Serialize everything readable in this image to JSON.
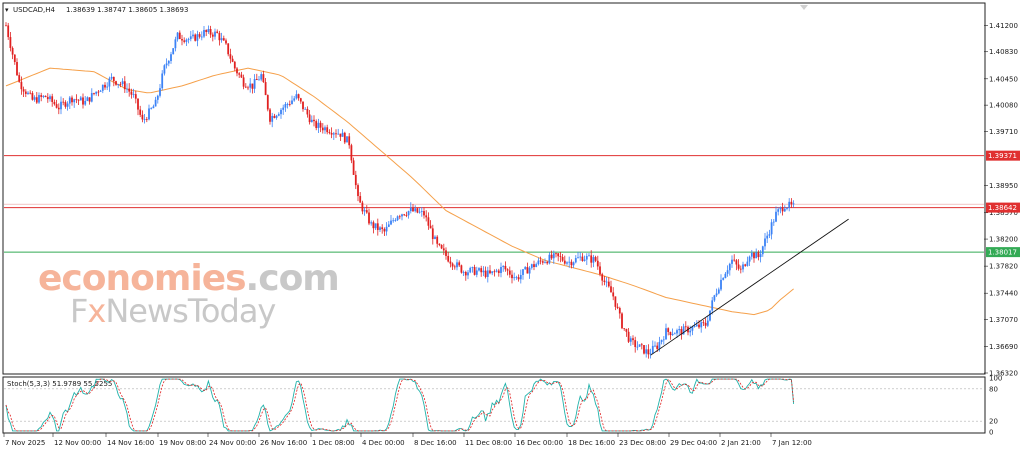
{
  "header": {
    "symbol_tf": "USDCAD,H4",
    "ohlc": "1.38639 1.38747 1.38605 1.38693",
    "stoch_label": "Stoch(5,3,3) 51.9789 55.5255"
  },
  "watermark": {
    "line1_a": "economies",
    "line1_b": ".com",
    "line2_a": "F",
    "line2_x": "x",
    "line2_b": "NewsToday"
  },
  "colors": {
    "bull": "#3b82f6",
    "bear": "#e02020",
    "ma": "#f5a04a",
    "resistance": "#e03030",
    "support": "#33aa55",
    "trendline": "#111111",
    "stoch_main": "#20b2aa",
    "stoch_signal": "#e02020",
    "watermark_orange": "#f6b49a",
    "watermark_grey": "#c8c8c8"
  },
  "chart_data": {
    "type": "candlestick",
    "symbol": "USDCAD",
    "timeframe": "H4",
    "y_ticks": [
      "1.41200",
      "1.40830",
      "1.40450",
      "1.40080",
      "1.39710",
      "1.38950",
      "1.38570",
      "1.38200",
      "1.37820",
      "1.37440",
      "1.37070",
      "1.36690",
      "1.36320"
    ],
    "x_ticks": [
      "7 Nov 2025",
      "12 Nov 00:00",
      "14 Nov 16:00",
      "19 Nov 08:00",
      "24 Nov 00:00",
      "26 Nov 16:00",
      "1 Dec 08:00",
      "4 Dec 00:00",
      "8 Dec 16:00",
      "11 Dec 08:00",
      "16 Dec 00:00",
      "18 Dec 16:00",
      "23 Dec 08:00",
      "29 Dec 04:00",
      "2 Jan 21:00",
      "7 Jan 12:00"
    ],
    "ylim": [
      1.3632,
      1.415
    ],
    "levels": [
      {
        "label": "1.39371",
        "value": 1.39371,
        "kind": "resistance"
      },
      {
        "label": "1.38642",
        "value": 1.38642,
        "kind": "resistance"
      },
      {
        "label": "1.38017",
        "value": 1.38017,
        "kind": "support"
      }
    ],
    "close_path": [
      [
        0,
        1.412
      ],
      [
        6,
        1.404
      ],
      [
        12,
        1.4015
      ],
      [
        18,
        1.402
      ],
      [
        24,
        1.4005
      ],
      [
        30,
        1.4018
      ],
      [
        36,
        1.4012
      ],
      [
        42,
        1.403
      ],
      [
        48,
        1.4045
      ],
      [
        54,
        1.4035
      ],
      [
        58,
        1.402
      ],
      [
        62,
        1.3985
      ],
      [
        68,
        1.401
      ],
      [
        72,
        1.406
      ],
      [
        78,
        1.4105
      ],
      [
        84,
        1.41
      ],
      [
        90,
        1.411
      ],
      [
        96,
        1.4108
      ],
      [
        100,
        1.409
      ],
      [
        104,
        1.406
      ],
      [
        108,
        1.404
      ],
      [
        112,
        1.4035
      ],
      [
        116,
        1.405
      ],
      [
        120,
        1.399
      ],
      [
        126,
        1.4005
      ],
      [
        132,
        1.402
      ],
      [
        136,
        1.4
      ],
      [
        140,
        1.398
      ],
      [
        146,
        1.3975
      ],
      [
        152,
        1.3968
      ],
      [
        156,
        1.3955
      ],
      [
        160,
        1.3875
      ],
      [
        166,
        1.384
      ],
      [
        172,
        1.383
      ],
      [
        178,
        1.3855
      ],
      [
        184,
        1.386
      ],
      [
        190,
        1.3855
      ],
      [
        196,
        1.381
      ],
      [
        202,
        1.379
      ],
      [
        208,
        1.3775
      ],
      [
        214,
        1.3775
      ],
      [
        220,
        1.377
      ],
      [
        226,
        1.378
      ],
      [
        232,
        1.3765
      ],
      [
        238,
        1.378
      ],
      [
        244,
        1.379
      ],
      [
        250,
        1.3795
      ],
      [
        256,
        1.3788
      ],
      [
        262,
        1.3795
      ],
      [
        268,
        1.379
      ],
      [
        272,
        1.376
      ],
      [
        276,
        1.374
      ],
      [
        280,
        1.37
      ],
      [
        284,
        1.3675
      ],
      [
        288,
        1.3668
      ],
      [
        292,
        1.366
      ],
      [
        296,
        1.367
      ],
      [
        300,
        1.369
      ],
      [
        306,
        1.369
      ],
      [
        312,
        1.3695
      ],
      [
        318,
        1.37
      ],
      [
        322,
        1.374
      ],
      [
        326,
        1.377
      ],
      [
        330,
        1.379
      ],
      [
        334,
        1.3775
      ],
      [
        338,
        1.38
      ],
      [
        342,
        1.3795
      ],
      [
        346,
        1.3825
      ],
      [
        350,
        1.3855
      ],
      [
        354,
        1.3868
      ],
      [
        358,
        1.3865
      ]
    ],
    "ma_path": [
      [
        0,
        1.4035
      ],
      [
        20,
        1.406
      ],
      [
        40,
        1.4055
      ],
      [
        55,
        1.403
      ],
      [
        65,
        1.4025
      ],
      [
        80,
        1.4035
      ],
      [
        95,
        1.405
      ],
      [
        110,
        1.406
      ],
      [
        125,
        1.405
      ],
      [
        140,
        1.402
      ],
      [
        155,
        1.3985
      ],
      [
        170,
        1.3945
      ],
      [
        185,
        1.3905
      ],
      [
        200,
        1.386
      ],
      [
        215,
        1.3835
      ],
      [
        230,
        1.381
      ],
      [
        245,
        1.379
      ],
      [
        260,
        1.3778
      ],
      [
        270,
        1.377
      ],
      [
        285,
        1.3755
      ],
      [
        300,
        1.3738
      ],
      [
        315,
        1.3728
      ],
      [
        330,
        1.3718
      ],
      [
        340,
        1.3714
      ],
      [
        347,
        1.372
      ],
      [
        352,
        1.3735
      ],
      [
        358,
        1.375
      ]
    ],
    "trendline": [
      [
        293,
        1.3657
      ],
      [
        383,
        1.3848
      ]
    ],
    "stochastic": {
      "label": "Stoch(5,3,3)",
      "main": 51.9789,
      "signal": 55.5255,
      "levels": [
        20,
        80
      ],
      "ylim": [
        0,
        100
      ],
      "y_ticks": [
        "100",
        "80",
        "20",
        "0"
      ]
    }
  }
}
